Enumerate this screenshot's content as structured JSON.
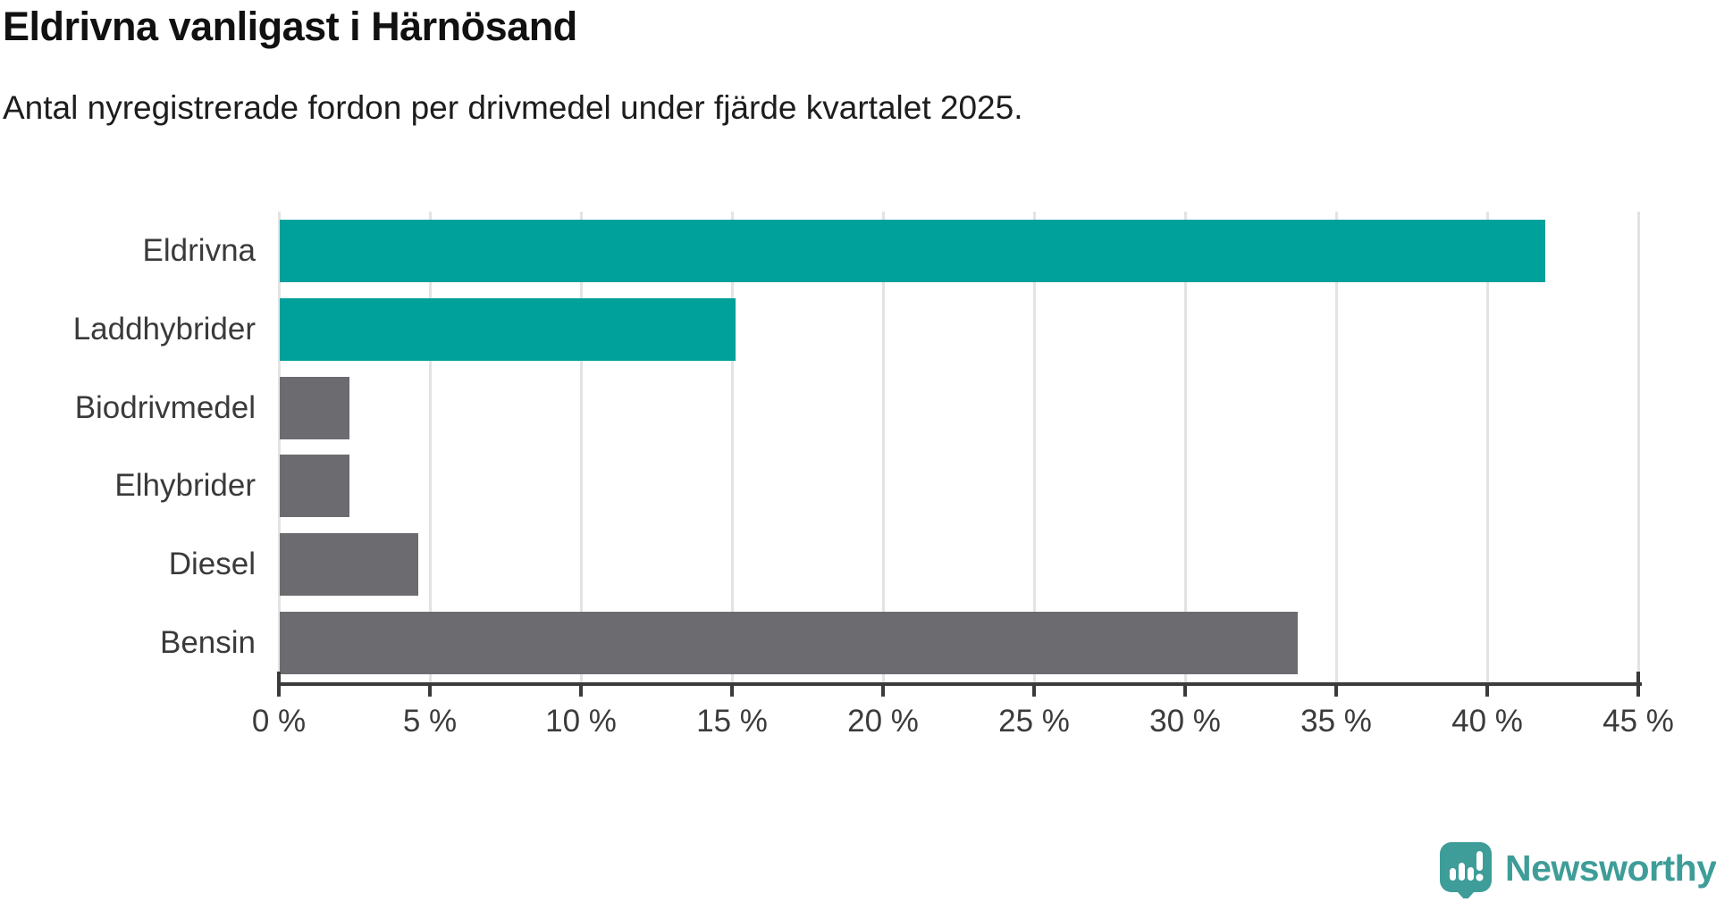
{
  "header": {
    "title": "Eldrivna vanligast i Härnösand",
    "subtitle": "Antal nyregistrerade fordon per drivmedel under fjärde kvartalet 2025."
  },
  "chart_data": {
    "type": "bar",
    "orientation": "horizontal",
    "title": "Eldrivna vanligast i Härnösand",
    "subtitle": "Antal nyregistrerade fordon per drivmedel under fjärde kvartalet 2025.",
    "categories": [
      "Eldrivna",
      "Laddhybrider",
      "Biodrivmedel",
      "Elhybrider",
      "Diesel",
      "Bensin"
    ],
    "values": [
      41.9,
      15.1,
      2.3,
      2.3,
      4.6,
      33.7
    ],
    "unit": "%",
    "bar_colors": [
      "#00a09b",
      "#00a09b",
      "#6c6c70",
      "#6c6c70",
      "#6c6c70",
      "#6c6c70"
    ],
    "xlim": [
      0,
      45
    ],
    "xticks": [
      0,
      5,
      10,
      15,
      20,
      25,
      30,
      35,
      40,
      45
    ],
    "xtick_labels": [
      "0 %",
      "5 %",
      "10 %",
      "15 %",
      "20 %",
      "25 %",
      "30 %",
      "35 %",
      "40 %",
      "45 %"
    ],
    "xlabel": "",
    "ylabel": "",
    "grid": true,
    "legend": false
  },
  "colors": {
    "accent_teal": "#00a09b",
    "neutral_gray": "#6c6c70",
    "gridline": "#e3e3e3",
    "axis": "#3b3b3b",
    "label_text": "#3a3a3a",
    "brand_teal": "#3e9d98"
  },
  "footer": {
    "brand": "Newsworthy",
    "logo_icon": "bar-chart-speech-bubble-icon"
  }
}
